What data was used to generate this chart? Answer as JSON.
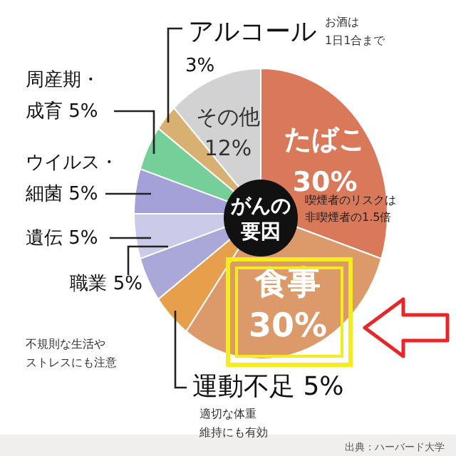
{
  "chart_data": {
    "type": "pie",
    "title": "がんの要因",
    "categories": [
      "たばこ",
      "食事",
      "運動不足",
      "職業",
      "遺伝",
      "ウイルス・細菌",
      "周産期・成育",
      "アルコール",
      "その他"
    ],
    "values": [
      30,
      30,
      5,
      5,
      5,
      5,
      5,
      3,
      12
    ],
    "value_labels": [
      "30%",
      "30%",
      "5%",
      "5%",
      "5%",
      "5%",
      "5%",
      "3%",
      "12%"
    ],
    "colors": [
      "#d9795a",
      "#dc9a6a",
      "#e89f4c",
      "#a9a8d8",
      "#cbcae8",
      "#a3a1d8",
      "#74cf98",
      "#d8b072",
      "#d2d2d2"
    ],
    "annotations": [
      "お酒は1日1合まで",
      "喫煙者のリスクは非喫煙者の1.5倍",
      "不規則な生活やストレスにも注意",
      "適切な体重維持にも有効",
      "出典：ハーバード大学"
    ]
  }
}
